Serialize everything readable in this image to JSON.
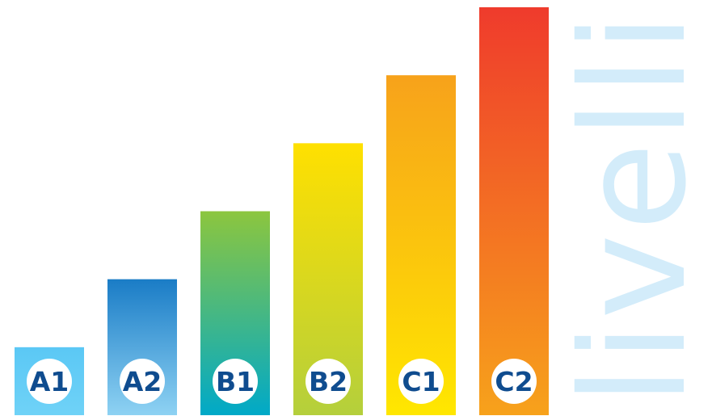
{
  "chart_data": {
    "type": "bar",
    "categories": [
      "A1",
      "A2",
      "B1",
      "B2",
      "C1",
      "C2"
    ],
    "values": [
      1,
      2,
      3,
      4,
      5,
      6
    ],
    "ylim": [
      0,
      6
    ],
    "grid": false,
    "title": "",
    "xlabel": "",
    "ylabel": "",
    "side_label": "livelli",
    "label_color": "#0f4c8f",
    "bar_gradients": [
      [
        "#5bc8f5",
        "#6fd2f7"
      ],
      [
        "#1a7cc6",
        "#8ed2f3"
      ],
      [
        "#8cc63e",
        "#00a9c8"
      ],
      [
        "#ffe000",
        "#b4cf3c"
      ],
      [
        "#f7a21b",
        "#ffe700"
      ],
      [
        "#ef3b2c",
        "#f7a21b"
      ]
    ]
  }
}
